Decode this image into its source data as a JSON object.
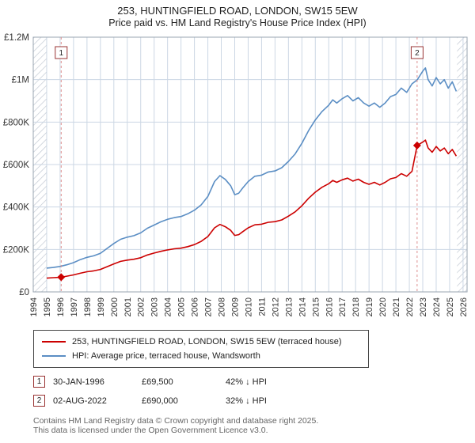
{
  "header": {
    "title": "253, HUNTINGFIELD ROAD, LONDON, SW15 5EW",
    "subtitle": "Price paid vs. HM Land Registry's House Price Index (HPI)"
  },
  "chart_data": {
    "type": "line",
    "title": "253, HUNTINGFIELD ROAD, LONDON, SW15 5EW",
    "subtitle": "Price paid vs. HM Land Registry's House Price Index (HPI)",
    "xlim": [
      1994,
      2026.3
    ],
    "ylim": [
      0,
      1200000
    ],
    "data_range": [
      1995.0,
      2025.55
    ],
    "x_ticks": [
      1994,
      1995,
      1996,
      1997,
      1998,
      1999,
      2000,
      2001,
      2002,
      2003,
      2004,
      2005,
      2006,
      2007,
      2008,
      2009,
      2010,
      2011,
      2012,
      2013,
      2014,
      2015,
      2016,
      2017,
      2018,
      2019,
      2020,
      2021,
      2022,
      2023,
      2024,
      2025,
      2026
    ],
    "y_ticks": [
      {
        "v": 0,
        "label": "£0"
      },
      {
        "v": 200000,
        "label": "£200K"
      },
      {
        "v": 400000,
        "label": "£400K"
      },
      {
        "v": 600000,
        "label": "£600K"
      },
      {
        "v": 800000,
        "label": "£800K"
      },
      {
        "v": 1000000,
        "label": "£1M"
      },
      {
        "v": 1200000,
        "label": "£1.2M"
      }
    ],
    "grid_color": "#ccd7e4",
    "series": [
      {
        "name": "253, HUNTINGFIELD ROAD, LONDON, SW15 5EW (terraced house)",
        "color": "#cc0000",
        "points": [
          [
            1995.0,
            65000
          ],
          [
            1995.5,
            67000
          ],
          [
            1996.08,
            69500
          ],
          [
            1996.5,
            74000
          ],
          [
            1997.0,
            80000
          ],
          [
            1997.5,
            88000
          ],
          [
            1998.0,
            95000
          ],
          [
            1998.5,
            99000
          ],
          [
            1999.0,
            106000
          ],
          [
            1999.5,
            119000
          ],
          [
            2000.0,
            132000
          ],
          [
            2000.5,
            144000
          ],
          [
            2001.0,
            150000
          ],
          [
            2001.5,
            154000
          ],
          [
            2002.0,
            161000
          ],
          [
            2002.5,
            174000
          ],
          [
            2003.0,
            183000
          ],
          [
            2003.5,
            191000
          ],
          [
            2004.0,
            198000
          ],
          [
            2004.5,
            203000
          ],
          [
            2005.0,
            206000
          ],
          [
            2005.5,
            213000
          ],
          [
            2006.0,
            223000
          ],
          [
            2006.5,
            238000
          ],
          [
            2007.0,
            261000
          ],
          [
            2007.5,
            302000
          ],
          [
            2007.9,
            318000
          ],
          [
            2008.3,
            307000
          ],
          [
            2008.7,
            290000
          ],
          [
            2009.0,
            266000
          ],
          [
            2009.3,
            270000
          ],
          [
            2009.6,
            284000
          ],
          [
            2010.0,
            302000
          ],
          [
            2010.5,
            316000
          ],
          [
            2011.0,
            319000
          ],
          [
            2011.5,
            328000
          ],
          [
            2012.0,
            331000
          ],
          [
            2012.5,
            339000
          ],
          [
            2013.0,
            357000
          ],
          [
            2013.5,
            377000
          ],
          [
            2014.0,
            406000
          ],
          [
            2014.5,
            441000
          ],
          [
            2015.0,
            470000
          ],
          [
            2015.5,
            493000
          ],
          [
            2016.0,
            510000
          ],
          [
            2016.3,
            525000
          ],
          [
            2016.6,
            516000
          ],
          [
            2017.0,
            528000
          ],
          [
            2017.4,
            536000
          ],
          [
            2017.8,
            522000
          ],
          [
            2018.2,
            531000
          ],
          [
            2018.6,
            516000
          ],
          [
            2019.0,
            507000
          ],
          [
            2019.4,
            516000
          ],
          [
            2019.8,
            504000
          ],
          [
            2020.2,
            516000
          ],
          [
            2020.6,
            533000
          ],
          [
            2021.0,
            539000
          ],
          [
            2021.4,
            557000
          ],
          [
            2021.8,
            545000
          ],
          [
            2022.2,
            568000
          ],
          [
            2022.58,
            690000
          ],
          [
            2023.0,
            706000
          ],
          [
            2023.2,
            715000
          ],
          [
            2023.4,
            678000
          ],
          [
            2023.7,
            658000
          ],
          [
            2024.0,
            685000
          ],
          [
            2024.3,
            664000
          ],
          [
            2024.6,
            678000
          ],
          [
            2024.9,
            651000
          ],
          [
            2025.2,
            671000
          ],
          [
            2025.5,
            640000
          ]
        ]
      },
      {
        "name": "HPI: Average price, terraced house, Wandsworth",
        "color": "#5b8ec4",
        "points": [
          [
            1995.0,
            112000
          ],
          [
            1995.5,
            115000
          ],
          [
            1996.0,
            120000
          ],
          [
            1996.5,
            128000
          ],
          [
            1997.0,
            138000
          ],
          [
            1997.5,
            152000
          ],
          [
            1998.0,
            163000
          ],
          [
            1998.5,
            170000
          ],
          [
            1999.0,
            182000
          ],
          [
            1999.5,
            205000
          ],
          [
            2000.0,
            228000
          ],
          [
            2000.5,
            248000
          ],
          [
            2001.0,
            258000
          ],
          [
            2001.5,
            265000
          ],
          [
            2002.0,
            278000
          ],
          [
            2002.5,
            300000
          ],
          [
            2003.0,
            315000
          ],
          [
            2003.5,
            330000
          ],
          [
            2004.0,
            342000
          ],
          [
            2004.5,
            350000
          ],
          [
            2005.0,
            355000
          ],
          [
            2005.5,
            368000
          ],
          [
            2006.0,
            385000
          ],
          [
            2006.5,
            410000
          ],
          [
            2007.0,
            450000
          ],
          [
            2007.5,
            520000
          ],
          [
            2007.9,
            548000
          ],
          [
            2008.3,
            530000
          ],
          [
            2008.7,
            500000
          ],
          [
            2009.0,
            458000
          ],
          [
            2009.3,
            465000
          ],
          [
            2009.6,
            490000
          ],
          [
            2010.0,
            520000
          ],
          [
            2010.5,
            545000
          ],
          [
            2011.0,
            550000
          ],
          [
            2011.5,
            565000
          ],
          [
            2012.0,
            570000
          ],
          [
            2012.5,
            585000
          ],
          [
            2013.0,
            615000
          ],
          [
            2013.5,
            650000
          ],
          [
            2014.0,
            700000
          ],
          [
            2014.5,
            760000
          ],
          [
            2015.0,
            810000
          ],
          [
            2015.5,
            850000
          ],
          [
            2016.0,
            880000
          ],
          [
            2016.3,
            905000
          ],
          [
            2016.6,
            890000
          ],
          [
            2017.0,
            910000
          ],
          [
            2017.4,
            925000
          ],
          [
            2017.8,
            900000
          ],
          [
            2018.2,
            915000
          ],
          [
            2018.6,
            890000
          ],
          [
            2019.0,
            875000
          ],
          [
            2019.4,
            890000
          ],
          [
            2019.8,
            870000
          ],
          [
            2020.2,
            890000
          ],
          [
            2020.6,
            920000
          ],
          [
            2021.0,
            930000
          ],
          [
            2021.4,
            960000
          ],
          [
            2021.8,
            940000
          ],
          [
            2022.2,
            980000
          ],
          [
            2022.6,
            1000000
          ],
          [
            2023.0,
            1040000
          ],
          [
            2023.2,
            1055000
          ],
          [
            2023.4,
            1000000
          ],
          [
            2023.7,
            970000
          ],
          [
            2024.0,
            1010000
          ],
          [
            2024.3,
            980000
          ],
          [
            2024.6,
            1000000
          ],
          [
            2024.9,
            960000
          ],
          [
            2025.2,
            990000
          ],
          [
            2025.5,
            945000
          ]
        ]
      }
    ],
    "sales": [
      {
        "n": "1",
        "x": 1996.08,
        "y": 69500,
        "date": "30-JAN-1996",
        "price": "£69,500",
        "hpi": "42% ↓ HPI"
      },
      {
        "n": "2",
        "x": 2022.58,
        "y": 690000,
        "date": "02-AUG-2022",
        "price": "£690,000",
        "hpi": "32% ↓ HPI"
      }
    ],
    "marker_line_color": "#dd8f8f",
    "legend_position": "bottom"
  },
  "footer": {
    "line1": "Contains HM Land Registry data © Crown copyright and database right 2025.",
    "line2": "This data is licensed under the Open Government Licence v3.0."
  }
}
